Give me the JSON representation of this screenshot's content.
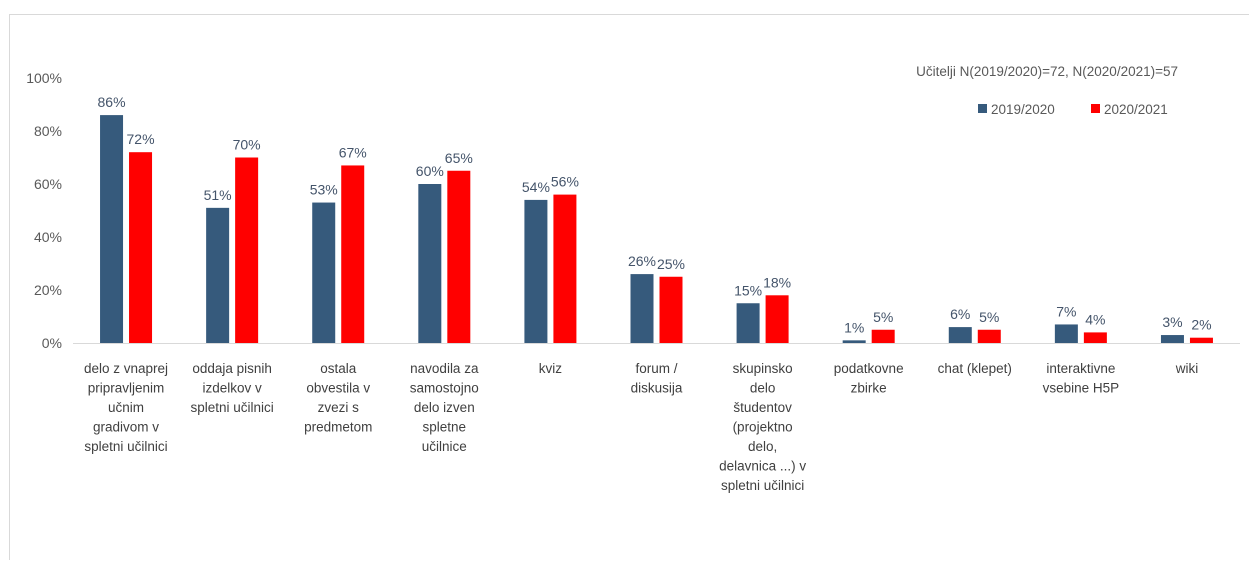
{
  "chart_data": {
    "type": "bar",
    "note": "Učitelji N(2019/2020)=72, N(2020/2021)=57",
    "ylim": [
      0,
      100
    ],
    "yticks": [
      "0%",
      "20%",
      "40%",
      "60%",
      "80%",
      "100%"
    ],
    "grid": false,
    "legend_position": "top-right",
    "categories": [
      [
        "delo z vnaprej",
        "pripravljenim",
        "učnim",
        "gradivom v",
        "spletni učilnici"
      ],
      [
        "oddaja pisnih",
        "izdelkov v",
        "spletni učilnici"
      ],
      [
        "ostala",
        "obvestila v",
        "zvezi s",
        "predmetom"
      ],
      [
        "navodila za",
        "samostojno",
        "delo izven",
        "spletne",
        "učilnice"
      ],
      [
        "kviz"
      ],
      [
        "forum /",
        "diskusija"
      ],
      [
        "skupinsko",
        "delo",
        "študentov",
        "(projektno",
        "delo,",
        "delavnica ...) v",
        "spletni učilnici"
      ],
      [
        "podatkovne",
        "zbirke"
      ],
      [
        "chat (klepet)"
      ],
      [
        "interaktivne",
        "vsebine H5P"
      ],
      [
        "wiki"
      ]
    ],
    "series": [
      {
        "name": "2019/2020",
        "color": "#365a7c",
        "values": [
          86,
          51,
          53,
          60,
          54,
          26,
          15,
          1,
          6,
          7,
          3
        ],
        "labels": [
          "86%",
          "51%",
          "53%",
          "60%",
          "54%",
          "26%",
          "15%",
          "1%",
          "6%",
          "7%",
          "3%"
        ]
      },
      {
        "name": "2020/2021",
        "color": "#ff0000",
        "values": [
          72,
          70,
          67,
          65,
          56,
          25,
          18,
          5,
          5,
          4,
          2
        ],
        "labels": [
          "72%",
          "70%",
          "67%",
          "65%",
          "56%",
          "25%",
          "18%",
          "5%",
          "5%",
          "4%",
          "2%"
        ]
      }
    ]
  }
}
